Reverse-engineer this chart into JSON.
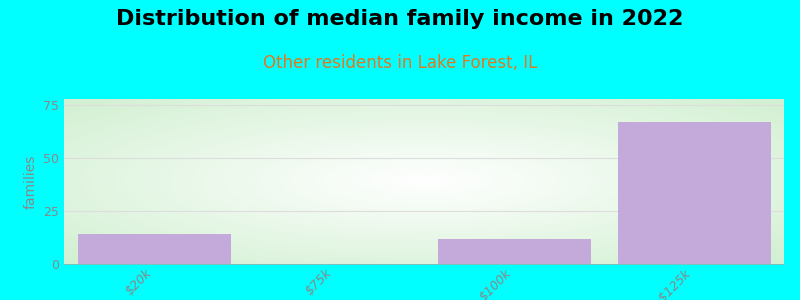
{
  "title": "Distribution of median family income in 2022",
  "subtitle": "Other residents in Lake Forest, IL",
  "ylabel": "families",
  "categories": [
    "$20k",
    "$75k",
    "$100k",
    ">$125k"
  ],
  "values": [
    14,
    0,
    12,
    67
  ],
  "bar_color": "#C3AADB",
  "background_color": "#00FFFF",
  "yticks": [
    0,
    25,
    50,
    75
  ],
  "ylim": [
    0,
    78
  ],
  "title_fontsize": 16,
  "subtitle_fontsize": 12,
  "subtitle_color": "#E07820",
  "ylabel_fontsize": 10,
  "tick_fontsize": 9,
  "grid_color": "#DDDDDD",
  "tick_color": "#888888"
}
